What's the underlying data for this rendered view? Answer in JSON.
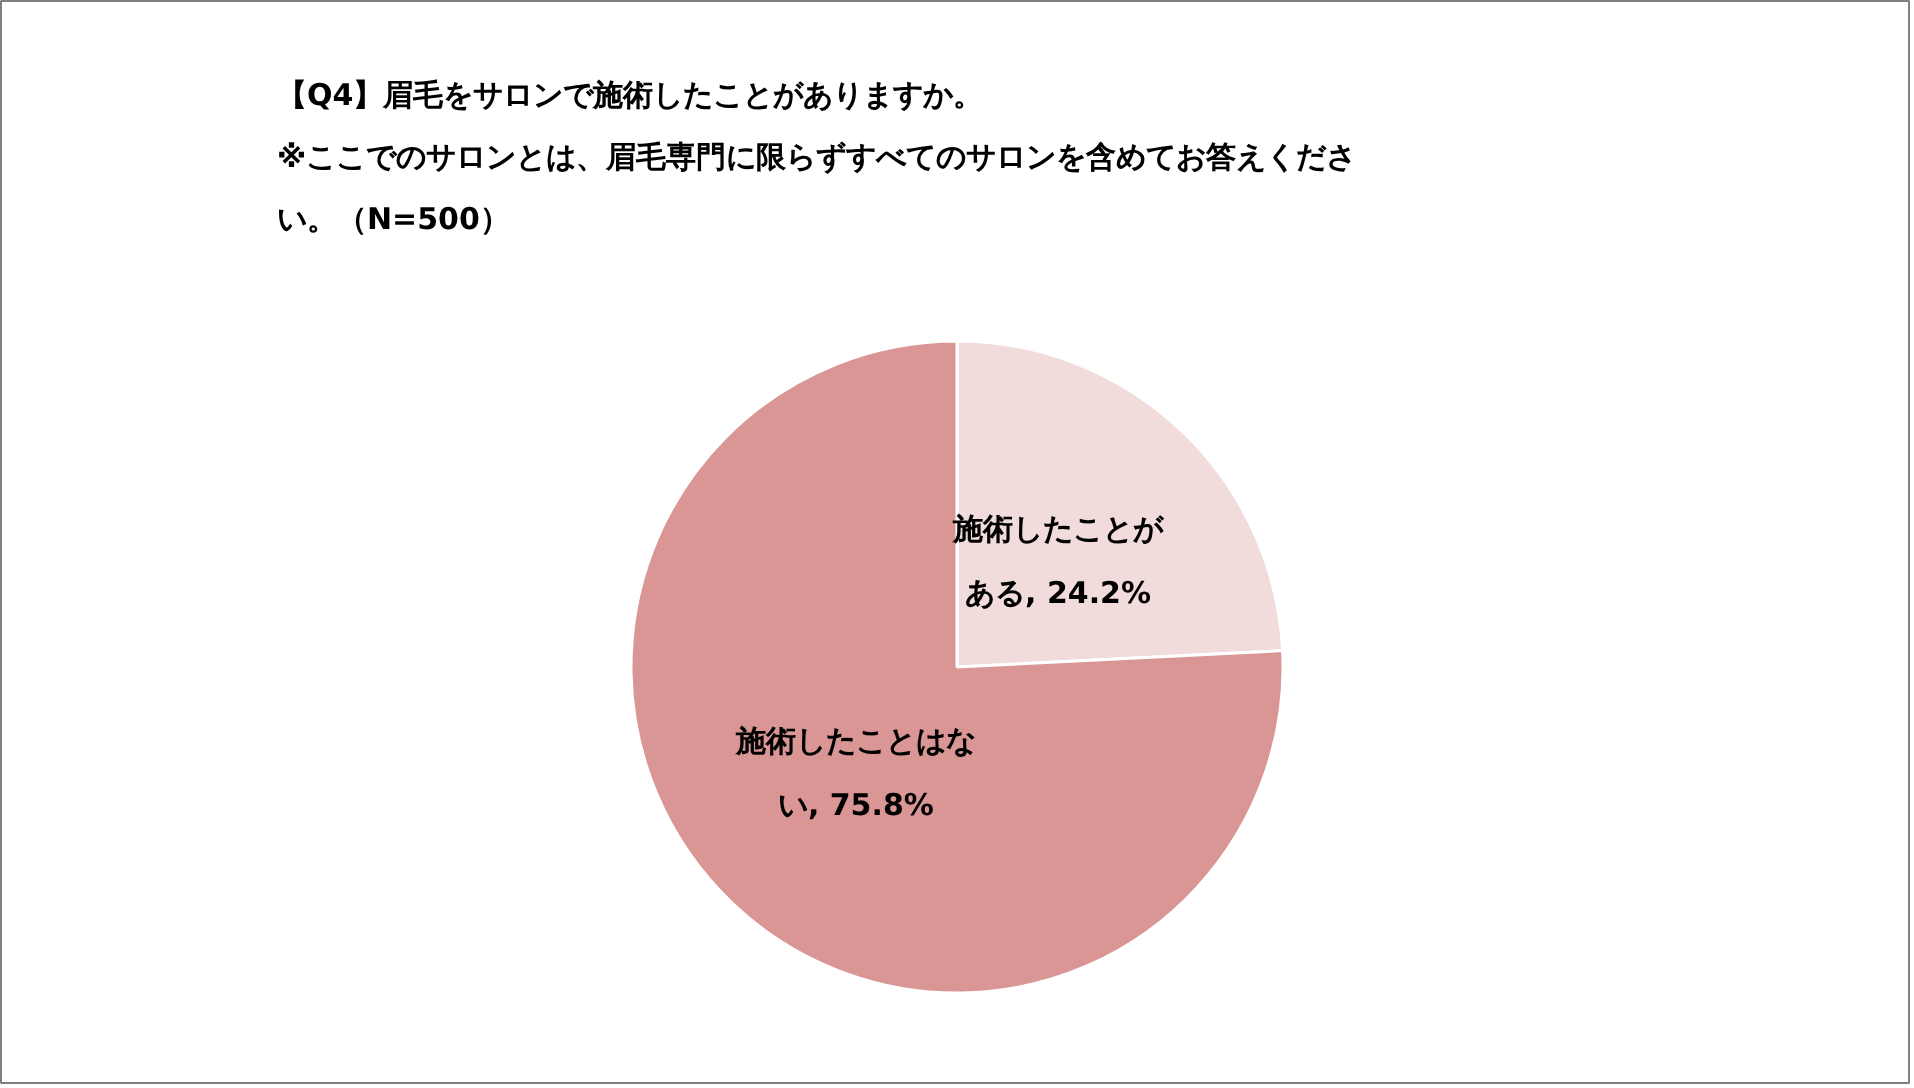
{
  "chart_data": {
    "type": "pie",
    "title": "【Q4】眉毛をサロンで施術したことがありますか。",
    "subtitle": "※ここでのサロンとは、眉毛専門に限らずすべてのサロンを含めてお答えください。（N=500）",
    "categories": [
      "施術したことがある",
      "施術したことはない"
    ],
    "values": [
      24.2,
      75.8
    ],
    "colors": [
      "#f2dcdb",
      "#d99694"
    ],
    "value_labels": [
      ", 24.2%",
      ", 75.8%"
    ]
  }
}
